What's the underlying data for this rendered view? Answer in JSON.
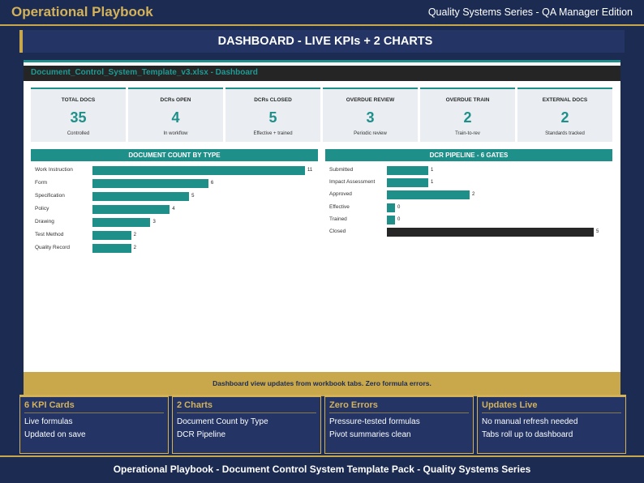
{
  "header": {
    "brand": "Operational Playbook",
    "edition": "Quality Systems Series - QA Manager Edition"
  },
  "banner": {
    "title": "DASHBOARD  -  LIVE KPIs + 2 CHARTS"
  },
  "file": {
    "title": "Document_Control_System_Template_v3.xlsx  -  Dashboard"
  },
  "kpis": [
    {
      "label": "TOTAL DOCS",
      "value": "35",
      "sub": "Controlled"
    },
    {
      "label": "DCRs OPEN",
      "value": "4",
      "sub": "In workflow"
    },
    {
      "label": "DCRs CLOSED",
      "value": "5",
      "sub": "Effective + trained"
    },
    {
      "label": "OVERDUE REVIEW",
      "value": "3",
      "sub": "Periodic review"
    },
    {
      "label": "OVERDUE TRAIN",
      "value": "2",
      "sub": "Train-to-rev"
    },
    {
      "label": "EXTERNAL DOCS",
      "value": "2",
      "sub": "Standards tracked"
    }
  ],
  "chart_data": [
    {
      "type": "bar",
      "orientation": "horizontal",
      "title": "DOCUMENT COUNT BY TYPE",
      "categories": [
        "Work Instruction",
        "Form",
        "Specification",
        "Policy",
        "Drawing",
        "Test Method",
        "Quality Record"
      ],
      "values": [
        11,
        6,
        5,
        4,
        3,
        2,
        2
      ],
      "value_labels": [
        "11",
        "6",
        "5",
        "4",
        "3",
        "2",
        "2"
      ],
      "color": "#1f8f8a"
    },
    {
      "type": "bar",
      "orientation": "horizontal",
      "title": "DCR PIPELINE  -  6 GATES",
      "categories": [
        "Submitted",
        "Impact Assessment",
        "Approved",
        "Effective",
        "Trained",
        "Closed"
      ],
      "values": [
        1,
        1,
        2,
        0,
        0,
        5
      ],
      "value_labels": [
        "1",
        "1",
        "2",
        "0",
        "0",
        "5"
      ],
      "colors": [
        "#1f8f8a",
        "#1f8f8a",
        "#1f8f8a",
        "#1f8f8a",
        "#1f8f8a",
        "#262626"
      ]
    }
  ],
  "footnote": "Dashboard view updates from workbook tabs.  Zero formula errors.",
  "cards": [
    {
      "title": "6 KPI Cards",
      "lines": [
        "Live formulas",
        "Updated on save"
      ]
    },
    {
      "title": "2 Charts",
      "lines": [
        "Document Count by Type",
        "DCR Pipeline"
      ]
    },
    {
      "title": "Zero Errors",
      "lines": [
        "Pressure-tested formulas",
        "Pivot summaries clean"
      ]
    },
    {
      "title": "Updates Live",
      "lines": [
        "No manual refresh needed",
        "Tabs roll up to dashboard"
      ]
    }
  ],
  "footer": {
    "text": "Operational Playbook  -  Document Control System Template Pack  -  Quality Systems Series"
  },
  "colors": {
    "navy": "#1c2b52",
    "gold": "#c9a84c",
    "teal": "#1f8f8a"
  }
}
